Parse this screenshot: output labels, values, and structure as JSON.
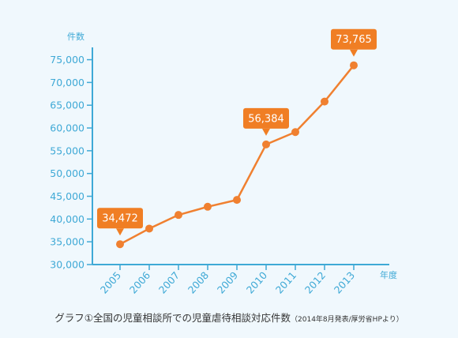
{
  "chart_data": {
    "type": "line",
    "ylabel": "件数",
    "xlabel": "年度",
    "x": [
      "2005",
      "2006",
      "2007",
      "2008",
      "2009",
      "2010",
      "2011",
      "2012",
      "2013"
    ],
    "values": [
      34472,
      37900,
      40900,
      42700,
      44200,
      56384,
      59100,
      65800,
      73765
    ],
    "ylim": [
      30000,
      77500
    ],
    "yticks": [
      "30,000",
      "35,000",
      "40,000",
      "45,000",
      "50,000",
      "55,000",
      "60,000",
      "65,000",
      "70,000",
      "75,000"
    ],
    "grid": false,
    "annotations": [
      {
        "index": 0,
        "text": "34,472"
      },
      {
        "index": 5,
        "text": "56,384"
      },
      {
        "index": 8,
        "text": "73,765"
      }
    ],
    "colors": {
      "line": "#f08030",
      "axis": "#3fa9d6",
      "callout": "#f07e24",
      "background": "#f0f8fd"
    }
  },
  "caption": {
    "main": "グラフ①全国の児童相談所での児童虐待相談対応件数",
    "note": "（2014年8月発表/厚労省HPより）"
  }
}
